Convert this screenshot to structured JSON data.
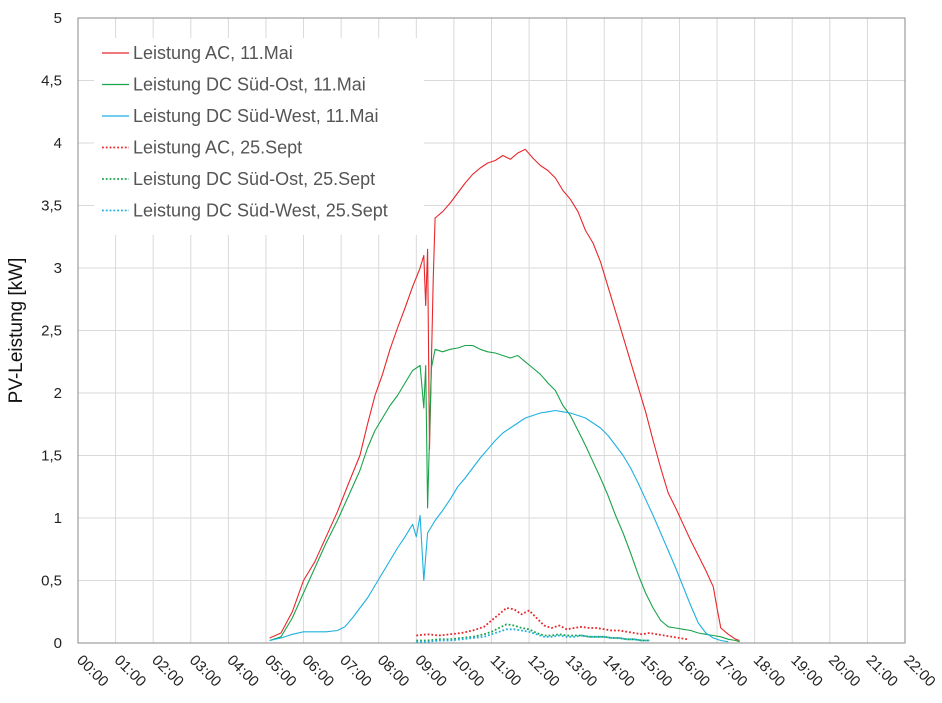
{
  "chart_data": {
    "type": "line",
    "xlabel": "",
    "ylabel": "PV-Leistung [kW]",
    "xlim": [
      0,
      22
    ],
    "ylim": [
      0,
      5
    ],
    "grid": true,
    "legend_position": "top-left",
    "x_ticks": [
      "00:00",
      "01:00",
      "02:00",
      "03:00",
      "04:00",
      "05:00",
      "06:00",
      "07:00",
      "08:00",
      "09:00",
      "10:00",
      "11:00",
      "12:00",
      "13:00",
      "14:00",
      "15:00",
      "16:00",
      "17:00",
      "18:00",
      "19:00",
      "20:00",
      "21:00",
      "22:00"
    ],
    "y_ticks": [
      "0",
      "0,5",
      "1",
      "1,5",
      "2",
      "2,5",
      "3",
      "3,5",
      "4",
      "4,5",
      "5"
    ],
    "series": [
      {
        "name": "Leistung AC, 11.Mai",
        "color": "#e8272a",
        "dash": "solid",
        "points": [
          [
            5.1,
            0.04
          ],
          [
            5.4,
            0.08
          ],
          [
            5.7,
            0.25
          ],
          [
            6.0,
            0.5
          ],
          [
            6.3,
            0.65
          ],
          [
            6.6,
            0.85
          ],
          [
            6.9,
            1.05
          ],
          [
            7.2,
            1.28
          ],
          [
            7.5,
            1.5
          ],
          [
            7.7,
            1.75
          ],
          [
            7.9,
            1.98
          ],
          [
            8.1,
            2.15
          ],
          [
            8.3,
            2.35
          ],
          [
            8.5,
            2.52
          ],
          [
            8.7,
            2.68
          ],
          [
            8.9,
            2.85
          ],
          [
            9.1,
            3.0
          ],
          [
            9.2,
            3.1
          ],
          [
            9.25,
            2.7
          ],
          [
            9.3,
            3.15
          ],
          [
            9.35,
            1.55
          ],
          [
            9.45,
            2.9
          ],
          [
            9.5,
            3.4
          ],
          [
            9.7,
            3.45
          ],
          [
            9.9,
            3.52
          ],
          [
            10.1,
            3.6
          ],
          [
            10.3,
            3.68
          ],
          [
            10.5,
            3.75
          ],
          [
            10.7,
            3.8
          ],
          [
            10.9,
            3.84
          ],
          [
            11.1,
            3.86
          ],
          [
            11.3,
            3.9
          ],
          [
            11.5,
            3.87
          ],
          [
            11.7,
            3.92
          ],
          [
            11.9,
            3.95
          ],
          [
            12.1,
            3.88
          ],
          [
            12.3,
            3.82
          ],
          [
            12.5,
            3.78
          ],
          [
            12.7,
            3.72
          ],
          [
            12.9,
            3.62
          ],
          [
            13.1,
            3.55
          ],
          [
            13.3,
            3.45
          ],
          [
            13.5,
            3.3
          ],
          [
            13.7,
            3.2
          ],
          [
            13.9,
            3.05
          ],
          [
            14.1,
            2.85
          ],
          [
            14.3,
            2.65
          ],
          [
            14.5,
            2.45
          ],
          [
            14.7,
            2.25
          ],
          [
            14.9,
            2.05
          ],
          [
            15.1,
            1.85
          ],
          [
            15.3,
            1.62
          ],
          [
            15.5,
            1.4
          ],
          [
            15.7,
            1.2
          ],
          [
            15.9,
            1.08
          ],
          [
            16.1,
            0.95
          ],
          [
            16.3,
            0.82
          ],
          [
            16.5,
            0.7
          ],
          [
            16.7,
            0.58
          ],
          [
            16.9,
            0.45
          ],
          [
            17.0,
            0.28
          ],
          [
            17.1,
            0.12
          ],
          [
            17.3,
            0.07
          ],
          [
            17.5,
            0.03
          ],
          [
            17.6,
            0.02
          ]
        ]
      },
      {
        "name": "Leistung DC Süd-Ost, 11.Mai",
        "color": "#1aa34a",
        "dash": "solid",
        "points": [
          [
            5.1,
            0.02
          ],
          [
            5.4,
            0.05
          ],
          [
            5.7,
            0.2
          ],
          [
            6.0,
            0.4
          ],
          [
            6.3,
            0.6
          ],
          [
            6.6,
            0.8
          ],
          [
            6.9,
            0.98
          ],
          [
            7.2,
            1.18
          ],
          [
            7.5,
            1.38
          ],
          [
            7.7,
            1.56
          ],
          [
            7.9,
            1.7
          ],
          [
            8.1,
            1.8
          ],
          [
            8.3,
            1.9
          ],
          [
            8.5,
            1.98
          ],
          [
            8.7,
            2.08
          ],
          [
            8.9,
            2.18
          ],
          [
            9.1,
            2.22
          ],
          [
            9.2,
            1.88
          ],
          [
            9.25,
            2.22
          ],
          [
            9.3,
            1.08
          ],
          [
            9.4,
            2.2
          ],
          [
            9.5,
            2.35
          ],
          [
            9.7,
            2.33
          ],
          [
            9.9,
            2.35
          ],
          [
            10.1,
            2.36
          ],
          [
            10.3,
            2.38
          ],
          [
            10.5,
            2.38
          ],
          [
            10.7,
            2.35
          ],
          [
            10.9,
            2.33
          ],
          [
            11.1,
            2.32
          ],
          [
            11.3,
            2.3
          ],
          [
            11.5,
            2.28
          ],
          [
            11.7,
            2.3
          ],
          [
            11.9,
            2.25
          ],
          [
            12.1,
            2.2
          ],
          [
            12.3,
            2.15
          ],
          [
            12.5,
            2.08
          ],
          [
            12.7,
            2.02
          ],
          [
            12.9,
            1.9
          ],
          [
            13.1,
            1.82
          ],
          [
            13.3,
            1.7
          ],
          [
            13.5,
            1.58
          ],
          [
            13.7,
            1.45
          ],
          [
            13.9,
            1.32
          ],
          [
            14.1,
            1.18
          ],
          [
            14.3,
            1.02
          ],
          [
            14.5,
            0.88
          ],
          [
            14.7,
            0.72
          ],
          [
            14.9,
            0.55
          ],
          [
            15.1,
            0.4
          ],
          [
            15.3,
            0.28
          ],
          [
            15.5,
            0.18
          ],
          [
            15.7,
            0.13
          ],
          [
            15.9,
            0.12
          ],
          [
            16.1,
            0.11
          ],
          [
            16.3,
            0.1
          ],
          [
            16.5,
            0.08
          ],
          [
            16.7,
            0.07
          ],
          [
            16.9,
            0.06
          ],
          [
            17.1,
            0.05
          ],
          [
            17.3,
            0.03
          ],
          [
            17.5,
            0.02
          ],
          [
            17.6,
            0.01
          ]
        ]
      },
      {
        "name": "Leistung DC Süd-West, 11.Mai",
        "color": "#1fb0e0",
        "dash": "solid",
        "points": [
          [
            5.1,
            0.02
          ],
          [
            5.4,
            0.04
          ],
          [
            5.7,
            0.07
          ],
          [
            6.0,
            0.09
          ],
          [
            6.3,
            0.09
          ],
          [
            6.6,
            0.09
          ],
          [
            6.9,
            0.1
          ],
          [
            7.1,
            0.13
          ],
          [
            7.3,
            0.2
          ],
          [
            7.5,
            0.28
          ],
          [
            7.7,
            0.36
          ],
          [
            7.9,
            0.46
          ],
          [
            8.1,
            0.56
          ],
          [
            8.3,
            0.66
          ],
          [
            8.5,
            0.76
          ],
          [
            8.7,
            0.85
          ],
          [
            8.9,
            0.95
          ],
          [
            9.0,
            0.85
          ],
          [
            9.1,
            1.02
          ],
          [
            9.2,
            0.5
          ],
          [
            9.3,
            0.88
          ],
          [
            9.5,
            0.98
          ],
          [
            9.7,
            1.06
          ],
          [
            9.9,
            1.15
          ],
          [
            10.1,
            1.25
          ],
          [
            10.3,
            1.32
          ],
          [
            10.5,
            1.4
          ],
          [
            10.7,
            1.48
          ],
          [
            10.9,
            1.55
          ],
          [
            11.1,
            1.62
          ],
          [
            11.3,
            1.68
          ],
          [
            11.5,
            1.72
          ],
          [
            11.7,
            1.76
          ],
          [
            11.9,
            1.8
          ],
          [
            12.1,
            1.82
          ],
          [
            12.3,
            1.84
          ],
          [
            12.5,
            1.85
          ],
          [
            12.7,
            1.86
          ],
          [
            12.9,
            1.85
          ],
          [
            13.1,
            1.84
          ],
          [
            13.3,
            1.82
          ],
          [
            13.5,
            1.8
          ],
          [
            13.7,
            1.76
          ],
          [
            13.9,
            1.72
          ],
          [
            14.1,
            1.66
          ],
          [
            14.3,
            1.58
          ],
          [
            14.5,
            1.5
          ],
          [
            14.7,
            1.4
          ],
          [
            14.9,
            1.28
          ],
          [
            15.1,
            1.15
          ],
          [
            15.3,
            1.02
          ],
          [
            15.5,
            0.88
          ],
          [
            15.7,
            0.74
          ],
          [
            15.9,
            0.6
          ],
          [
            16.1,
            0.45
          ],
          [
            16.3,
            0.3
          ],
          [
            16.5,
            0.16
          ],
          [
            16.7,
            0.08
          ],
          [
            16.9,
            0.04
          ],
          [
            17.1,
            0.02
          ],
          [
            17.3,
            0.01
          ]
        ]
      },
      {
        "name": "Leistung AC, 25.Sept",
        "color": "#e8272a",
        "dash": "dotted",
        "points": [
          [
            9.0,
            0.06
          ],
          [
            9.3,
            0.07
          ],
          [
            9.6,
            0.06
          ],
          [
            9.9,
            0.07
          ],
          [
            10.2,
            0.08
          ],
          [
            10.5,
            0.1
          ],
          [
            10.8,
            0.13
          ],
          [
            11.0,
            0.18
          ],
          [
            11.2,
            0.23
          ],
          [
            11.4,
            0.28
          ],
          [
            11.6,
            0.27
          ],
          [
            11.8,
            0.23
          ],
          [
            12.0,
            0.26
          ],
          [
            12.2,
            0.2
          ],
          [
            12.4,
            0.14
          ],
          [
            12.6,
            0.12
          ],
          [
            12.8,
            0.14
          ],
          [
            13.0,
            0.11
          ],
          [
            13.2,
            0.12
          ],
          [
            13.4,
            0.13
          ],
          [
            13.6,
            0.12
          ],
          [
            13.8,
            0.12
          ],
          [
            14.0,
            0.11
          ],
          [
            14.2,
            0.1
          ],
          [
            14.4,
            0.1
          ],
          [
            14.6,
            0.09
          ],
          [
            14.8,
            0.08
          ],
          [
            15.0,
            0.07
          ],
          [
            15.2,
            0.08
          ],
          [
            15.4,
            0.07
          ],
          [
            15.6,
            0.06
          ],
          [
            15.8,
            0.05
          ],
          [
            16.0,
            0.04
          ],
          [
            16.2,
            0.03
          ]
        ]
      },
      {
        "name": "Leistung DC Süd-Ost, 25.Sept",
        "color": "#1aa34a",
        "dash": "dotted",
        "points": [
          [
            9.0,
            0.02
          ],
          [
            9.3,
            0.02
          ],
          [
            9.6,
            0.03
          ],
          [
            9.9,
            0.03
          ],
          [
            10.2,
            0.04
          ],
          [
            10.5,
            0.05
          ],
          [
            10.8,
            0.07
          ],
          [
            11.0,
            0.09
          ],
          [
            11.2,
            0.12
          ],
          [
            11.4,
            0.15
          ],
          [
            11.6,
            0.14
          ],
          [
            11.8,
            0.12
          ],
          [
            12.0,
            0.11
          ],
          [
            12.2,
            0.08
          ],
          [
            12.4,
            0.06
          ],
          [
            12.6,
            0.06
          ],
          [
            12.8,
            0.07
          ],
          [
            13.0,
            0.06
          ],
          [
            13.2,
            0.06
          ],
          [
            13.4,
            0.06
          ],
          [
            13.6,
            0.05
          ],
          [
            13.8,
            0.05
          ],
          [
            14.0,
            0.05
          ],
          [
            14.2,
            0.04
          ],
          [
            14.4,
            0.04
          ],
          [
            14.6,
            0.03
          ],
          [
            14.8,
            0.03
          ],
          [
            15.0,
            0.02
          ],
          [
            15.2,
            0.02
          ]
        ]
      },
      {
        "name": "Leistung DC Süd-West, 25.Sept",
        "color": "#1fb0e0",
        "dash": "dotted",
        "points": [
          [
            9.0,
            0.01
          ],
          [
            9.3,
            0.01
          ],
          [
            9.6,
            0.02
          ],
          [
            9.9,
            0.02
          ],
          [
            10.2,
            0.03
          ],
          [
            10.5,
            0.04
          ],
          [
            10.8,
            0.05
          ],
          [
            11.0,
            0.07
          ],
          [
            11.2,
            0.09
          ],
          [
            11.4,
            0.11
          ],
          [
            11.6,
            0.11
          ],
          [
            11.8,
            0.1
          ],
          [
            12.0,
            0.09
          ],
          [
            12.2,
            0.07
          ],
          [
            12.4,
            0.05
          ],
          [
            12.6,
            0.05
          ],
          [
            12.8,
            0.06
          ],
          [
            13.0,
            0.05
          ],
          [
            13.2,
            0.05
          ],
          [
            13.4,
            0.06
          ],
          [
            13.6,
            0.05
          ],
          [
            13.8,
            0.05
          ],
          [
            14.0,
            0.05
          ],
          [
            14.2,
            0.04
          ],
          [
            14.4,
            0.04
          ],
          [
            14.6,
            0.03
          ],
          [
            14.8,
            0.03
          ],
          [
            15.0,
            0.02
          ],
          [
            15.2,
            0.02
          ]
        ]
      }
    ]
  }
}
